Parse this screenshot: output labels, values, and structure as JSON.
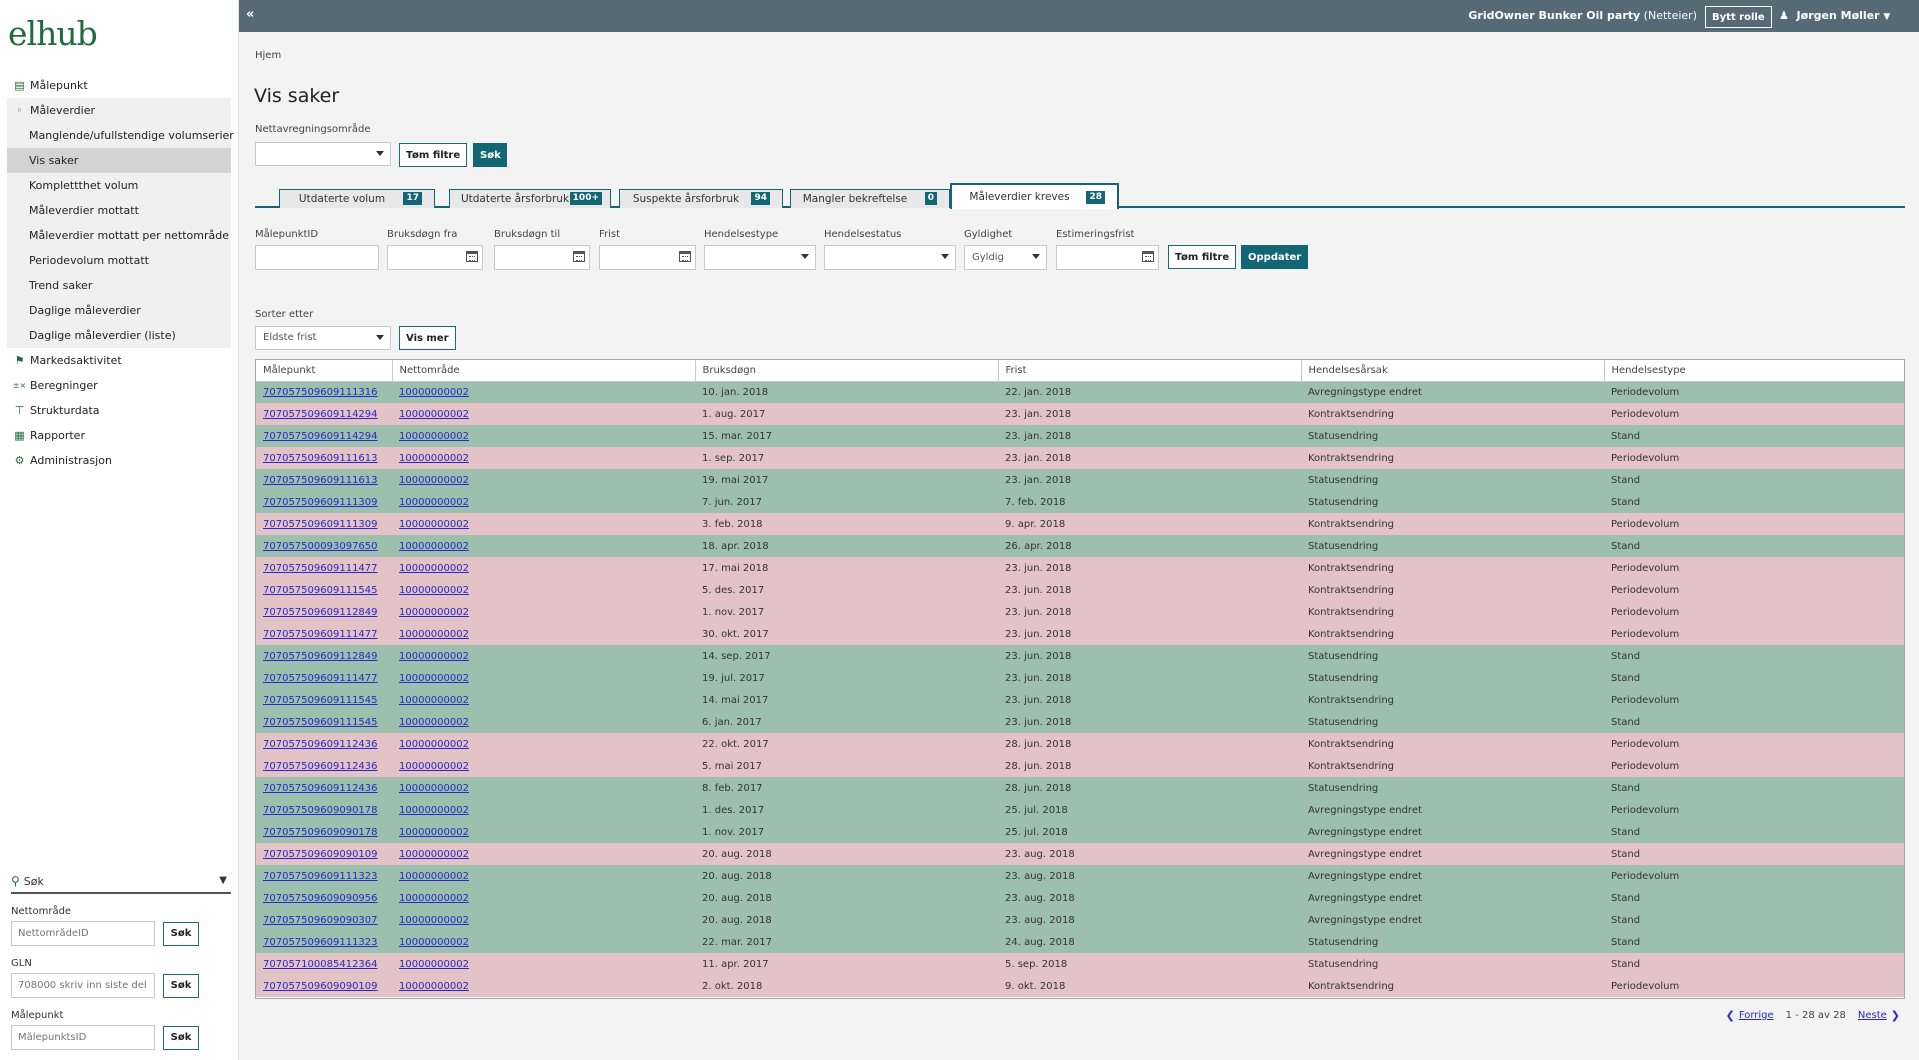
{
  "logo": "elhub",
  "sidebar": {
    "items": [
      {
        "label": "Målepunkt",
        "icon": "meterpoint-icon"
      },
      {
        "label": "Måleverdier",
        "icon": "gauge-icon"
      },
      {
        "label": "Manglende/ufullstendige volumserier"
      },
      {
        "label": "Vis saker"
      },
      {
        "label": "Komplettthet volum"
      },
      {
        "label": "Måleverdier mottatt"
      },
      {
        "label": "Måleverdier mottatt per nettområde"
      },
      {
        "label": "Periodevolum mottatt"
      },
      {
        "label": "Trend saker"
      },
      {
        "label": "Daglige måleverdier"
      },
      {
        "label": "Daglige måleverdier (liste)"
      },
      {
        "label": "Markedsaktivitet",
        "icon": "flag-icon"
      },
      {
        "label": "Beregninger",
        "icon": "calculator-icon"
      },
      {
        "label": "Strukturdata",
        "icon": "tower-icon"
      },
      {
        "label": "Rapporter",
        "icon": "grid-icon"
      },
      {
        "label": "Administrasjon",
        "icon": "gear-icon"
      }
    ]
  },
  "side_search": {
    "title": "Søk",
    "net_area_label": "Nettområde",
    "net_area_placeholder": "NettområdeID",
    "gln_label": "GLN",
    "gln_placeholder": "708000 skriv inn siste del",
    "meterpoint_label": "Målepunkt",
    "meterpoint_placeholder": "MålepunktsID",
    "search_btn": "Søk"
  },
  "topbar": {
    "org_name": "GridOwner Bunker Oil party",
    "org_role": "(Netteier)",
    "switch_role": "Bytt rolle",
    "user": "Jørgen Møller"
  },
  "breadcrumb": "Hjem",
  "page_title": "Vis saker",
  "area_filter": {
    "label": "Nettavregningsområde",
    "clear": "Tøm filtre",
    "search": "Søk"
  },
  "tabs": [
    {
      "label": "Utdaterte volum",
      "count": "17"
    },
    {
      "label": "Utdaterte årsforbruk",
      "count": "100+"
    },
    {
      "label": "Suspekte årsforbruk",
      "count": "94"
    },
    {
      "label": "Mangler bekreftelse",
      "count": "0"
    },
    {
      "label": "Måleverdier kreves",
      "count": "28"
    }
  ],
  "filters": {
    "meterpoint_id": "MålepunktID",
    "usage_from": "Bruksdøgn fra",
    "usage_to": "Bruksdøgn til",
    "deadline": "Frist",
    "event_type": "Hendelsestype",
    "event_status": "Hendelsestatus",
    "validity": "Gyldighet",
    "validity_value": "Gyldig",
    "estimation_deadline": "Estimeringsfrist",
    "clear": "Tøm filtre",
    "update": "Oppdater"
  },
  "sort": {
    "label": "Sorter etter",
    "value": "Eldste frist",
    "more": "Vis mer"
  },
  "table": {
    "headers": [
      "Målepunkt",
      "Nettområde",
      "Bruksdøgn",
      "Frist",
      "Hendelsesårsak",
      "Hendelsestype"
    ],
    "rows": [
      [
        "707057509609111316",
        "10000000002",
        "10. jan. 2018",
        "22. jan. 2018",
        "Avregningstype endret",
        "Periodevolum",
        "green"
      ],
      [
        "707057509609114294",
        "10000000002",
        "1. aug. 2017",
        "23. jan. 2018",
        "Kontraktsendring",
        "Periodevolum",
        "pink"
      ],
      [
        "707057509609114294",
        "10000000002",
        "15. mar. 2017",
        "23. jan. 2018",
        "Statusendring",
        "Stand",
        "green"
      ],
      [
        "707057509609111613",
        "10000000002",
        "1. sep. 2017",
        "23. jan. 2018",
        "Kontraktsendring",
        "Periodevolum",
        "pink"
      ],
      [
        "707057509609111613",
        "10000000002",
        "19. mai 2017",
        "23. jan. 2018",
        "Statusendring",
        "Stand",
        "green"
      ],
      [
        "707057509609111309",
        "10000000002",
        "7. jun. 2017",
        "7. feb. 2018",
        "Statusendring",
        "Stand",
        "green"
      ],
      [
        "707057509609111309",
        "10000000002",
        "3. feb. 2018",
        "9. apr. 2018",
        "Kontraktsendring",
        "Periodevolum",
        "pink"
      ],
      [
        "707057500093097650",
        "10000000002",
        "18. apr. 2018",
        "26. apr. 2018",
        "Statusendring",
        "Stand",
        "green"
      ],
      [
        "707057509609111477",
        "10000000002",
        "17. mai 2018",
        "23. jun. 2018",
        "Kontraktsendring",
        "Periodevolum",
        "pink"
      ],
      [
        "707057509609111545",
        "10000000002",
        "5. des. 2017",
        "23. jun. 2018",
        "Kontraktsendring",
        "Periodevolum",
        "pink"
      ],
      [
        "707057509609112849",
        "10000000002",
        "1. nov. 2017",
        "23. jun. 2018",
        "Kontraktsendring",
        "Periodevolum",
        "pink"
      ],
      [
        "707057509609111477",
        "10000000002",
        "30. okt. 2017",
        "23. jun. 2018",
        "Kontraktsendring",
        "Periodevolum",
        "pink"
      ],
      [
        "707057509609112849",
        "10000000002",
        "14. sep. 2017",
        "23. jun. 2018",
        "Statusendring",
        "Stand",
        "green"
      ],
      [
        "707057509609111477",
        "10000000002",
        "19. jul. 2017",
        "23. jun. 2018",
        "Statusendring",
        "Stand",
        "green"
      ],
      [
        "707057509609111545",
        "10000000002",
        "14. mai 2017",
        "23. jun. 2018",
        "Kontraktsendring",
        "Periodevolum",
        "green"
      ],
      [
        "707057509609111545",
        "10000000002",
        "6. jan. 2017",
        "23. jun. 2018",
        "Statusendring",
        "Stand",
        "green"
      ],
      [
        "707057509609112436",
        "10000000002",
        "22. okt. 2017",
        "28. jun. 2018",
        "Kontraktsendring",
        "Periodevolum",
        "pink"
      ],
      [
        "707057509609112436",
        "10000000002",
        "5. mai 2017",
        "28. jun. 2018",
        "Kontraktsendring",
        "Periodevolum",
        "pink"
      ],
      [
        "707057509609112436",
        "10000000002",
        "8. feb. 2017",
        "28. jun. 2018",
        "Statusendring",
        "Stand",
        "green"
      ],
      [
        "707057509609090178",
        "10000000002",
        "1. des. 2017",
        "25. jul. 2018",
        "Avregningstype endret",
        "Periodevolum",
        "green"
      ],
      [
        "707057509609090178",
        "10000000002",
        "1. nov. 2017",
        "25. jul. 2018",
        "Avregningstype endret",
        "Stand",
        "green"
      ],
      [
        "707057509609090109",
        "10000000002",
        "20. aug. 2018",
        "23. aug. 2018",
        "Avregningstype endret",
        "Stand",
        "pink"
      ],
      [
        "707057509609111323",
        "10000000002",
        "20. aug. 2018",
        "23. aug. 2018",
        "Avregningstype endret",
        "Periodevolum",
        "green"
      ],
      [
        "707057509609090956",
        "10000000002",
        "20. aug. 2018",
        "23. aug. 2018",
        "Avregningstype endret",
        "Stand",
        "green"
      ],
      [
        "707057509609090307",
        "10000000002",
        "20. aug. 2018",
        "23. aug. 2018",
        "Avregningstype endret",
        "Stand",
        "green"
      ],
      [
        "707057509609111323",
        "10000000002",
        "22. mar. 2017",
        "24. aug. 2018",
        "Statusendring",
        "Stand",
        "green"
      ],
      [
        "707057100085412364",
        "10000000002",
        "11. apr. 2017",
        "5. sep. 2018",
        "Statusendring",
        "Stand",
        "pink"
      ],
      [
        "707057509609090109",
        "10000000002",
        "2. okt. 2018",
        "9. okt. 2018",
        "Kontraktsendring",
        "Periodevolum",
        "pink"
      ]
    ]
  },
  "pager": {
    "prev": "Forrige",
    "range": "1 - 28 av 28",
    "next": "Neste"
  },
  "colors": {
    "row_green": "#9dbfad",
    "row_pink": "#e3c3c6",
    "accent": "#136774",
    "topbar": "#566a76"
  }
}
